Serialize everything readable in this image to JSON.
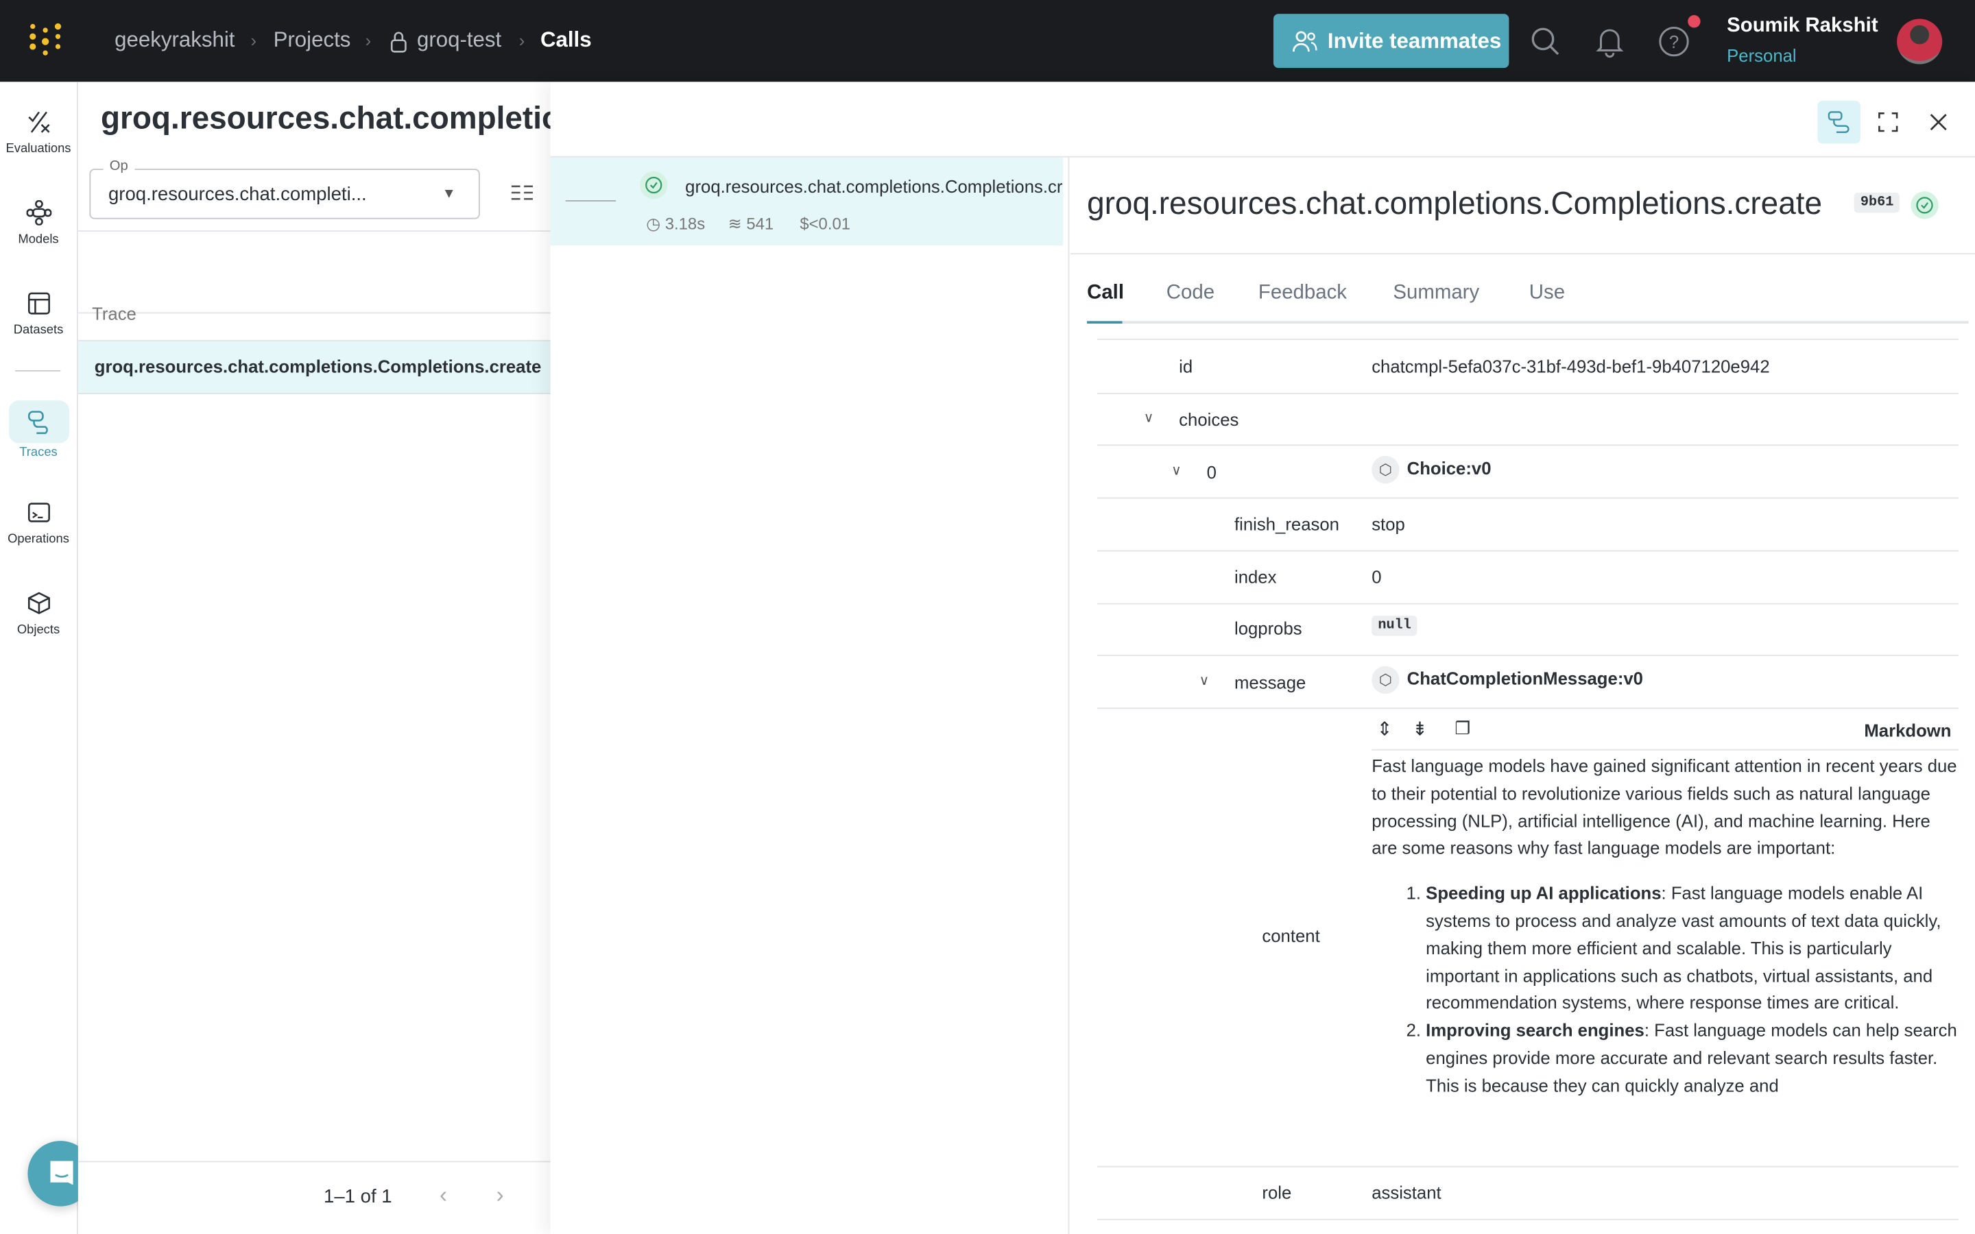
{
  "topbar": {
    "breadcrumbs": [
      "geekyrakshit",
      "Projects",
      "groq-test",
      "Calls"
    ],
    "invite_label": "Invite teammates",
    "user_name": "Soumik Rakshit",
    "user_org": "Personal",
    "accent": "#4fa6b8"
  },
  "nav": [
    {
      "label": "Evaluations",
      "icon": "evaluations-icon"
    },
    {
      "label": "Models",
      "icon": "models-icon"
    },
    {
      "label": "Datasets",
      "icon": "datasets-icon"
    },
    {
      "label": "Traces",
      "icon": "traces-icon",
      "active": true
    },
    {
      "label": "Operations",
      "icon": "operations-icon"
    },
    {
      "label": "Objects",
      "icon": "objects-icon"
    }
  ],
  "list": {
    "title": "groq.resources.chat.completions.Completions.create",
    "op_label": "Op",
    "op_value": "groq.resources.chat.completi...",
    "column": "Trace",
    "rows": [
      "groq.resources.chat.completions.Completions.create"
    ],
    "pagination": "1–1 of 1"
  },
  "tree": {
    "name": "groq.resources.chat.completions.Completions.create",
    "latency": "3.18s",
    "tokens": "541",
    "cost": "$<0.01"
  },
  "detail": {
    "title": "groq.resources.chat.completions.Completions.create",
    "version": "9b61",
    "tabs": [
      "Call",
      "Code",
      "Feedback",
      "Summary",
      "Use"
    ],
    "rows": {
      "id_key": "id",
      "id_val": "chatcmpl-5efa037c-31bf-493d-bef1-9b407120e942",
      "choices_key": "choices",
      "zero_key": "0",
      "zero_val": "Choice:v0",
      "finish_key": "finish_reason",
      "finish_val": "stop",
      "index_key": "index",
      "index_val": "0",
      "logprobs_key": "logprobs",
      "logprobs_val": "null",
      "message_key": "message",
      "message_val": "ChatCompletionMessage:v0",
      "content_key": "content",
      "markdown_label": "Markdown",
      "role_key": "role",
      "role_val": "assistant"
    },
    "content": {
      "intro": "Fast language models have gained significant attention in recent years due to their potential to revolutionize various fields such as natural language processing (NLP), artificial intelligence (AI), and machine learning. Here are some reasons why fast language models are important:",
      "items": [
        {
          "bold": "Speeding up AI applications",
          "text": ": Fast language models enable AI systems to process and analyze vast amounts of text data quickly, making them more efficient and scalable. This is particularly important in applications such as chatbots, virtual assistants, and recommendation systems, where response times are critical."
        },
        {
          "bold": "Improving search engines",
          "text": ": Fast language models can help search engines provide more accurate and relevant search results faster. This is because they can quickly analyze and"
        }
      ]
    }
  }
}
